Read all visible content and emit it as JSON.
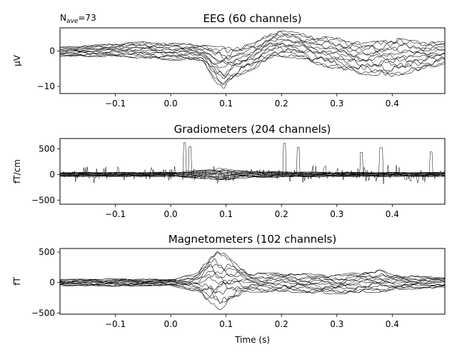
{
  "chart_data": [
    {
      "type": "line",
      "title": "EEG (60 channels)",
      "annotation_main": "N",
      "annotation_sub": "ave",
      "annotation_value": "=73",
      "xlabel": "",
      "ylabel": "µV",
      "xlim": [
        -0.2,
        0.495
      ],
      "ylim": [
        -12,
        6.5
      ],
      "xticks": [
        -0.1,
        0.0,
        0.1,
        0.2,
        0.3,
        0.4
      ],
      "xtick_labels": [
        "−0.1",
        "0.0",
        "0.1",
        "0.2",
        "0.3",
        "0.4"
      ],
      "yticks": [
        0,
        -10
      ],
      "ytick_labels": [
        "0",
        "−10"
      ],
      "channel_count": 60,
      "envelope_time": [
        -0.2,
        -0.1,
        -0.05,
        0.0,
        0.04,
        0.06,
        0.08,
        0.095,
        0.12,
        0.15,
        0.18,
        0.2,
        0.23,
        0.26,
        0.3,
        0.35,
        0.4,
        0.45,
        0.495
      ],
      "envelope_upper": [
        1.0,
        2.0,
        2.5,
        2.0,
        2.0,
        1.5,
        1.0,
        1.0,
        1.0,
        2.0,
        5.0,
        5.5,
        5.0,
        4.0,
        3.5,
        2.0,
        3.5,
        2.5,
        2.5
      ],
      "envelope_lower": [
        -1.5,
        -1.5,
        -2.0,
        -2.5,
        -2.5,
        -3.0,
        -8.5,
        -10.5,
        -7.0,
        -5.0,
        -2.0,
        -1.5,
        -2.0,
        -3.5,
        -5.0,
        -6.5,
        -7.0,
        -5.5,
        -3.5
      ],
      "grid": false
    },
    {
      "type": "line",
      "title": "Gradiometers (204 channels)",
      "xlabel": "",
      "ylabel": "fT/cm",
      "xlim": [
        -0.2,
        0.495
      ],
      "ylim": [
        -580,
        700
      ],
      "xticks": [
        -0.1,
        0.0,
        0.1,
        0.2,
        0.3,
        0.4
      ],
      "xtick_labels": [
        "−0.1",
        "0.0",
        "0.1",
        "0.2",
        "0.3",
        "0.4"
      ],
      "yticks": [
        500,
        0,
        -500
      ],
      "ytick_labels": [
        "500",
        "0",
        "−500"
      ],
      "channel_count": 204,
      "envelope_time": [
        -0.2,
        -0.1,
        0.0,
        0.06,
        0.09,
        0.12,
        0.2,
        0.3,
        0.4,
        0.495
      ],
      "envelope_upper": [
        40,
        40,
        40,
        80,
        120,
        70,
        50,
        40,
        40,
        40
      ],
      "envelope_lower": [
        -40,
        -40,
        -40,
        -80,
        -120,
        -70,
        -50,
        -40,
        -40,
        -40
      ],
      "spike_peak_time": [
        0.025,
        0.035,
        0.205,
        0.23,
        0.345,
        0.38,
        0.47
      ],
      "spike_peak_value": [
        620,
        540,
        610,
        530,
        430,
        520,
        440
      ],
      "grid": false
    },
    {
      "type": "line",
      "title": "Magnetometers (102 channels)",
      "xlabel": "Time (s)",
      "ylabel": "fT",
      "xlim": [
        -0.2,
        0.495
      ],
      "ylim": [
        -520,
        560
      ],
      "xticks": [
        -0.1,
        0.0,
        0.1,
        0.2,
        0.3,
        0.4
      ],
      "xtick_labels": [
        "−0.1",
        "0.0",
        "0.1",
        "0.2",
        "0.3",
        "0.4"
      ],
      "yticks": [
        500,
        0,
        -500
      ],
      "ytick_labels": [
        "500",
        "0",
        "−500"
      ],
      "channel_count": 102,
      "envelope_time": [
        -0.2,
        -0.1,
        0.0,
        0.05,
        0.07,
        0.09,
        0.11,
        0.14,
        0.2,
        0.3,
        0.38,
        0.4,
        0.495
      ],
      "envelope_upper": [
        50,
        60,
        50,
        150,
        450,
        520,
        350,
        150,
        150,
        120,
        200,
        120,
        80
      ],
      "envelope_lower": [
        -50,
        -60,
        -50,
        -150,
        -330,
        -430,
        -260,
        -150,
        -150,
        -180,
        -150,
        -120,
        -80
      ],
      "grid": false
    }
  ]
}
